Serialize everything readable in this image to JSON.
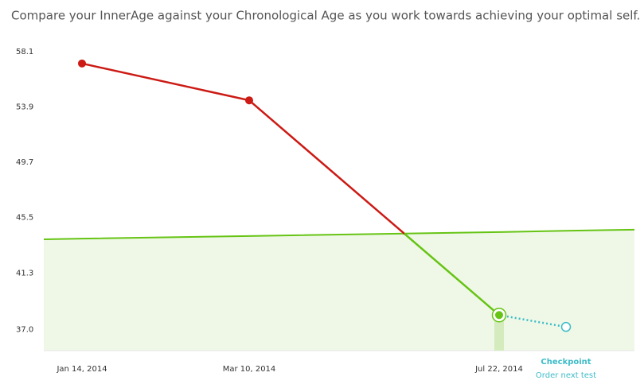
{
  "chart_data": {
    "type": "line",
    "title": "Compare your InnerAge against your Chronological Age as you work towards achieving your optimal self.",
    "categories": [
      "Jan 14, 2014",
      "Mar 10, 2014",
      "Jul 22, 2014",
      "Checkpoint"
    ],
    "checkpoint_note": "Order next test",
    "series": [
      {
        "color": "#cc1a14",
        "below_color": "#66c414",
        "values": [
          57.2,
          54.4,
          38.1,
          null
        ]
      },
      {
        "color": "#3cbcc8",
        "values": [
          null,
          null,
          38.1,
          37.2
        ]
      },
      {
        "color": "#66c414",
        "fill": "#eff8e7",
        "values": [
          43.9,
          44.1,
          44.4,
          44.5
        ]
      }
    ],
    "ylim": [
      35.4,
      59.0
    ],
    "yticks": [
      58.1,
      53.9,
      49.7,
      45.5,
      41.3,
      {
        "value": 37,
        "label": "37.0"
      }
    ],
    "grid": false
  }
}
